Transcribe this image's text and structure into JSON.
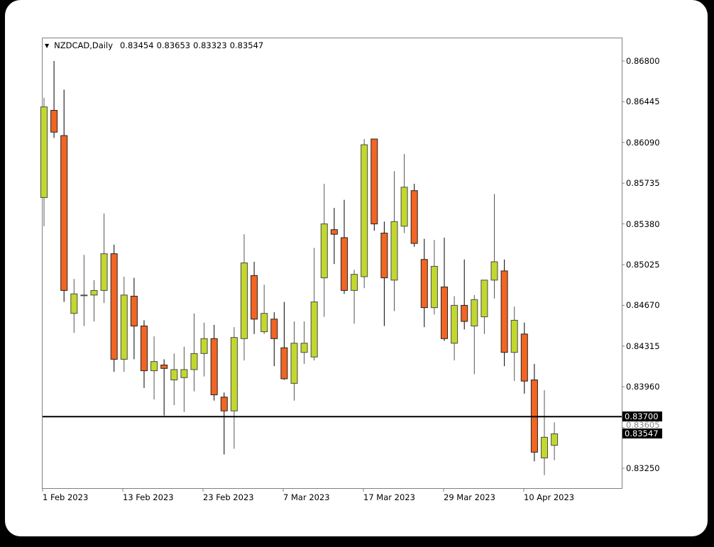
{
  "header": {
    "symbol": "NZDCAD,Daily",
    "open": "0.83454",
    "high": "0.83653",
    "low": "0.83323",
    "close": "0.83547"
  },
  "y_axis": {
    "ticks": [
      "0.86800",
      "0.86445",
      "0.86090",
      "0.85735",
      "0.85380",
      "0.85025",
      "0.84670",
      "0.84315",
      "0.83960",
      "0.83605",
      "0.83250"
    ]
  },
  "hline": {
    "value": "0.83700",
    "label": "0.83700"
  },
  "last_price": {
    "value": "0.83547",
    "label": "0.83547"
  },
  "x_axis": {
    "labels": [
      "1 Feb 2023",
      "13 Feb 2023",
      "23 Feb 2023",
      "7 Mar 2023",
      "17 Mar 2023",
      "29 Mar 2023",
      "10 Apr 2023"
    ]
  },
  "colors": {
    "bull": "#c3d82e",
    "bear": "#f26522",
    "wick": "#000000",
    "hline": "#000000"
  },
  "chart_data": {
    "type": "candlestick",
    "title": "NZDCAD,Daily",
    "xlabel": "",
    "ylabel": "",
    "ylim": [
      0.8318,
      0.87
    ],
    "grid": false,
    "x_tick_labels": [
      "1 Feb 2023",
      "13 Feb 2023",
      "23 Feb 2023",
      "7 Mar 2023",
      "17 Mar 2023",
      "29 Mar 2023",
      "10 Apr 2023"
    ],
    "y_tick_labels": [
      "0.86800",
      "0.86445",
      "0.86090",
      "0.85735",
      "0.85380",
      "0.85025",
      "0.84670",
      "0.84315",
      "0.83960",
      "0.83605",
      "0.83250"
    ],
    "horizontal_line": 0.837,
    "last_close": 0.83547,
    "candles": [
      {
        "o": 0.8561,
        "h": 0.8648,
        "l": 0.8536,
        "c": 0.864
      },
      {
        "o": 0.8637,
        "h": 0.868,
        "l": 0.8613,
        "c": 0.8618
      },
      {
        "o": 0.8615,
        "h": 0.8655,
        "l": 0.847,
        "c": 0.848
      },
      {
        "o": 0.846,
        "h": 0.849,
        "l": 0.8443,
        "c": 0.8477
      },
      {
        "o": 0.8476,
        "h": 0.8511,
        "l": 0.8449,
        "c": 0.8476
      },
      {
        "o": 0.8476,
        "h": 0.8489,
        "l": 0.8453,
        "c": 0.848
      },
      {
        "o": 0.848,
        "h": 0.8547,
        "l": 0.8469,
        "c": 0.8512
      },
      {
        "o": 0.8512,
        "h": 0.852,
        "l": 0.8409,
        "c": 0.842
      },
      {
        "o": 0.842,
        "h": 0.8492,
        "l": 0.8409,
        "c": 0.8476
      },
      {
        "o": 0.8475,
        "h": 0.8491,
        "l": 0.842,
        "c": 0.8449
      },
      {
        "o": 0.8449,
        "h": 0.8454,
        "l": 0.8395,
        "c": 0.841
      },
      {
        "o": 0.841,
        "h": 0.844,
        "l": 0.8385,
        "c": 0.8418
      },
      {
        "o": 0.8415,
        "h": 0.842,
        "l": 0.8371,
        "c": 0.8412
      },
      {
        "o": 0.8402,
        "h": 0.8425,
        "l": 0.838,
        "c": 0.8411
      },
      {
        "o": 0.8404,
        "h": 0.8431,
        "l": 0.8374,
        "c": 0.8411
      },
      {
        "o": 0.8411,
        "h": 0.846,
        "l": 0.8392,
        "c": 0.8425
      },
      {
        "o": 0.8425,
        "h": 0.8452,
        "l": 0.8405,
        "c": 0.8438
      },
      {
        "o": 0.8438,
        "h": 0.845,
        "l": 0.8384,
        "c": 0.8389
      },
      {
        "o": 0.8387,
        "h": 0.8391,
        "l": 0.8337,
        "c": 0.8375
      },
      {
        "o": 0.8375,
        "h": 0.8448,
        "l": 0.8342,
        "c": 0.8439
      },
      {
        "o": 0.8438,
        "h": 0.8529,
        "l": 0.8419,
        "c": 0.8504
      },
      {
        "o": 0.8493,
        "h": 0.8505,
        "l": 0.8442,
        "c": 0.8455
      },
      {
        "o": 0.8444,
        "h": 0.8485,
        "l": 0.8442,
        "c": 0.846
      },
      {
        "o": 0.8455,
        "h": 0.8461,
        "l": 0.8414,
        "c": 0.8438
      },
      {
        "o": 0.843,
        "h": 0.847,
        "l": 0.8402,
        "c": 0.8403
      },
      {
        "o": 0.8399,
        "h": 0.8453,
        "l": 0.8384,
        "c": 0.8434
      },
      {
        "o": 0.8426,
        "h": 0.8453,
        "l": 0.8416,
        "c": 0.8434
      },
      {
        "o": 0.8422,
        "h": 0.8517,
        "l": 0.8419,
        "c": 0.847
      },
      {
        "o": 0.8491,
        "h": 0.8573,
        "l": 0.8457,
        "c": 0.8538
      },
      {
        "o": 0.8533,
        "h": 0.8552,
        "l": 0.8503,
        "c": 0.8529
      },
      {
        "o": 0.8526,
        "h": 0.8559,
        "l": 0.8477,
        "c": 0.848
      },
      {
        "o": 0.848,
        "h": 0.8498,
        "l": 0.8451,
        "c": 0.8494
      },
      {
        "o": 0.8492,
        "h": 0.8612,
        "l": 0.8482,
        "c": 0.8607
      },
      {
        "o": 0.8612,
        "h": 0.8612,
        "l": 0.8532,
        "c": 0.8538
      },
      {
        "o": 0.853,
        "h": 0.854,
        "l": 0.8449,
        "c": 0.8491
      },
      {
        "o": 0.8489,
        "h": 0.8584,
        "l": 0.8462,
        "c": 0.854
      },
      {
        "o": 0.8536,
        "h": 0.8599,
        "l": 0.853,
        "c": 0.857
      },
      {
        "o": 0.8567,
        "h": 0.8573,
        "l": 0.8518,
        "c": 0.8521
      },
      {
        "o": 0.8507,
        "h": 0.8525,
        "l": 0.8448,
        "c": 0.8465
      },
      {
        "o": 0.8465,
        "h": 0.8524,
        "l": 0.8459,
        "c": 0.8501
      },
      {
        "o": 0.8483,
        "h": 0.8526,
        "l": 0.8436,
        "c": 0.8438
      },
      {
        "o": 0.8434,
        "h": 0.8475,
        "l": 0.8419,
        "c": 0.8467
      },
      {
        "o": 0.8467,
        "h": 0.8507,
        "l": 0.8446,
        "c": 0.8453
      },
      {
        "o": 0.8449,
        "h": 0.8476,
        "l": 0.8407,
        "c": 0.8472
      },
      {
        "o": 0.8457,
        "h": 0.8489,
        "l": 0.8442,
        "c": 0.8489
      },
      {
        "o": 0.8489,
        "h": 0.8564,
        "l": 0.8473,
        "c": 0.8505
      },
      {
        "o": 0.8497,
        "h": 0.8507,
        "l": 0.8414,
        "c": 0.8426
      },
      {
        "o": 0.8426,
        "h": 0.8466,
        "l": 0.8401,
        "c": 0.8454
      },
      {
        "o": 0.8442,
        "h": 0.8452,
        "l": 0.839,
        "c": 0.8401
      },
      {
        "o": 0.8402,
        "h": 0.8416,
        "l": 0.8331,
        "c": 0.8339
      },
      {
        "o": 0.8334,
        "h": 0.8393,
        "l": 0.8319,
        "c": 0.8352
      },
      {
        "o": 0.8345,
        "h": 0.8365,
        "l": 0.8332,
        "c": 0.8355
      }
    ]
  }
}
